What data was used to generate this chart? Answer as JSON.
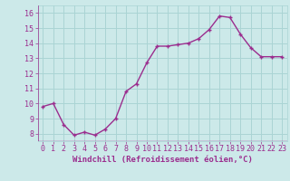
{
  "x": [
    0,
    1,
    2,
    3,
    4,
    5,
    6,
    7,
    8,
    9,
    10,
    11,
    12,
    13,
    14,
    15,
    16,
    17,
    18,
    19,
    20,
    21,
    22,
    23
  ],
  "y": [
    9.8,
    10.0,
    8.6,
    7.9,
    8.1,
    7.9,
    8.3,
    9.0,
    10.8,
    11.3,
    12.7,
    13.8,
    13.8,
    13.9,
    14.0,
    14.3,
    14.9,
    15.8,
    15.7,
    14.6,
    13.7,
    13.1,
    13.1,
    13.1
  ],
  "line_color": "#9b2d8e",
  "marker": "+",
  "bg_color": "#cce9e9",
  "grid_color": "#aad4d4",
  "xlabel": "Windchill (Refroidissement éolien,°C)",
  "ylim": [
    7.5,
    16.5
  ],
  "xlim": [
    -0.5,
    23.5
  ],
  "yticks": [
    8,
    9,
    10,
    11,
    12,
    13,
    14,
    15,
    16
  ],
  "xtick_labels": [
    "0",
    "1",
    "2",
    "3",
    "4",
    "5",
    "6",
    "7",
    "8",
    "9",
    "10",
    "11",
    "12",
    "13",
    "14",
    "15",
    "16",
    "17",
    "18",
    "19",
    "20",
    "21",
    "22",
    "23"
  ],
  "xlabel_color": "#9b2d8e",
  "tick_color": "#9b2d8e",
  "font_size": 6,
  "xlabel_fontsize": 6.5,
  "linewidth": 1.0,
  "markersize": 3.5
}
